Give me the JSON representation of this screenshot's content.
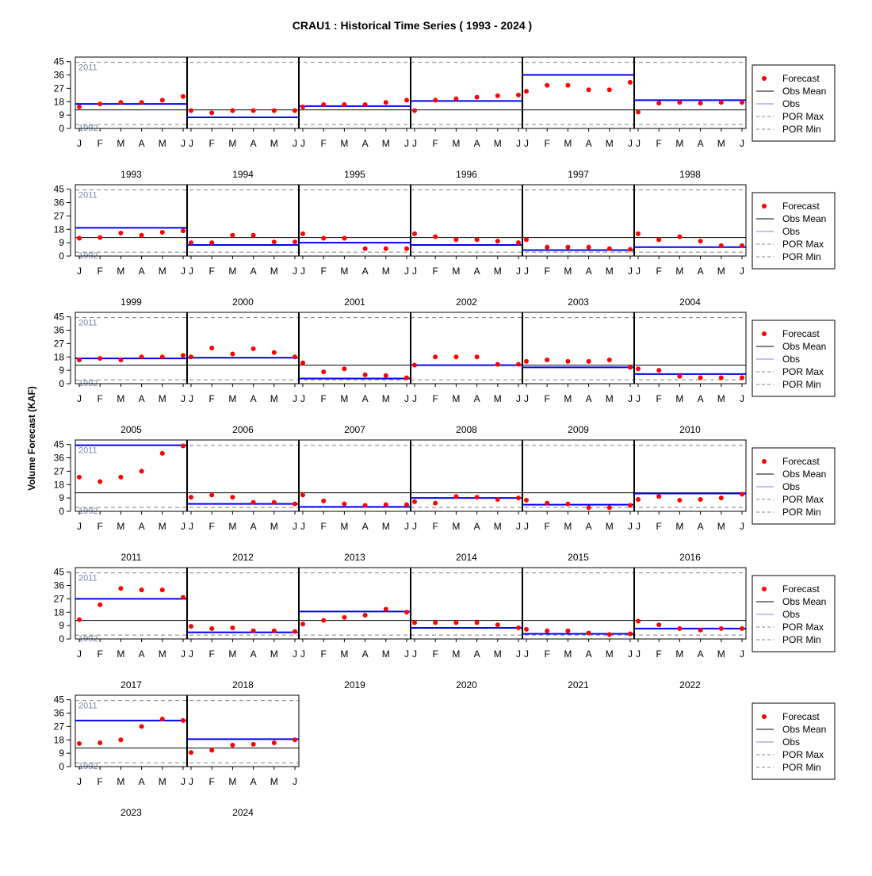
{
  "chart_data": {
    "type": "scatter",
    "title": "CRAU1 : Historical Time Series ( 1993 - 2024 )",
    "ylabel": "Volume Forecast (KAF)",
    "y_ticks": [
      0,
      9,
      18,
      27,
      36,
      45
    ],
    "ylim": [
      0,
      48
    ],
    "month_labels": [
      "J",
      "F",
      "M",
      "A",
      "M",
      "J"
    ],
    "obs_mean": 12.5,
    "por_max": {
      "value": 44.5,
      "label": "2011"
    },
    "por_min": {
      "value": 2.6,
      "label": "1992"
    },
    "legend": {
      "placement": "right of each row",
      "entries": [
        "Forecast",
        "Obs Mean",
        "Obs",
        "POR Max",
        "POR Min"
      ]
    },
    "colors": {
      "forecast": "#ff0000",
      "obs": "#0000ff",
      "obs_legend": "#8080ff",
      "obs_mean": "#000000",
      "por": "#808080",
      "ref_label": "#7a86a6"
    },
    "years": [
      {
        "year": "1993",
        "forecast": [
          14.5,
          16.5,
          17.5,
          17.5,
          19.0,
          21.5
        ],
        "obs": 16.5
      },
      {
        "year": "1994",
        "forecast": [
          12.0,
          10.5,
          12.0,
          12.0,
          12.0,
          12.0
        ],
        "obs": 7.5
      },
      {
        "year": "1995",
        "forecast": [
          14.5,
          16.0,
          16.0,
          16.0,
          17.5,
          19.0
        ],
        "obs": 15.0
      },
      {
        "year": "1996",
        "forecast": [
          12.0,
          19.0,
          20.0,
          21.0,
          22.0,
          22.5
        ],
        "obs": 18.5
      },
      {
        "year": "1997",
        "forecast": [
          25.0,
          29.0,
          29.0,
          26.0,
          26.0,
          31.0
        ],
        "obs": 36.0
      },
      {
        "year": "1998",
        "forecast": [
          11.0,
          17.0,
          17.5,
          17.0,
          17.5,
          17.5
        ],
        "obs": 19.0
      },
      {
        "year": "1999",
        "forecast": [
          12.0,
          12.5,
          15.5,
          14.0,
          16.0,
          17.0
        ],
        "obs": 19.0
      },
      {
        "year": "2000",
        "forecast": [
          9.0,
          9.0,
          14.0,
          14.0,
          9.5,
          9.5
        ],
        "obs": 7.5
      },
      {
        "year": "2001",
        "forecast": [
          15.0,
          12.0,
          12.0,
          5.0,
          5.0,
          5.0
        ],
        "obs": 9.0
      },
      {
        "year": "2002",
        "forecast": [
          15.0,
          13.0,
          11.0,
          11.0,
          10.0,
          9.0
        ],
        "obs": 7.5
      },
      {
        "year": "2003",
        "forecast": [
          11.0,
          6.0,
          6.0,
          6.0,
          5.0,
          4.5
        ],
        "obs": 4.0
      },
      {
        "year": "2004",
        "forecast": [
          15.0,
          11.0,
          13.0,
          10.0,
          7.0,
          7.0
        ],
        "obs": 6.0
      },
      {
        "year": "2005",
        "forecast": [
          16.0,
          17.0,
          16.0,
          18.0,
          18.0,
          19.0
        ],
        "obs": 17.0
      },
      {
        "year": "2006",
        "forecast": [
          18.0,
          24.0,
          20.0,
          23.5,
          21.0,
          18.0
        ],
        "obs": 17.5
      },
      {
        "year": "2007",
        "forecast": [
          14.0,
          8.0,
          10.0,
          6.0,
          5.5,
          4.0
        ],
        "obs": 3.5
      },
      {
        "year": "2008",
        "forecast": [
          12.5,
          18.0,
          18.0,
          18.0,
          13.0,
          13.0
        ],
        "obs": 12.5
      },
      {
        "year": "2009",
        "forecast": [
          15.0,
          16.0,
          15.0,
          15.0,
          16.0,
          11.0
        ],
        "obs": 11.0
      },
      {
        "year": "2010",
        "forecast": [
          10.0,
          9.0,
          5.0,
          4.0,
          4.0,
          4.0
        ],
        "obs": 6.5
      },
      {
        "year": "2011",
        "forecast": [
          23.0,
          20.0,
          23.0,
          27.0,
          39.0,
          44.0
        ],
        "obs": 44.5
      },
      {
        "year": "2012",
        "forecast": [
          9.5,
          11.0,
          9.5,
          6.0,
          6.0,
          5.0
        ],
        "obs": 5.0
      },
      {
        "year": "2013",
        "forecast": [
          11.0,
          7.0,
          5.0,
          4.0,
          4.5,
          4.5
        ],
        "obs": 3.0
      },
      {
        "year": "2014",
        "forecast": [
          6.5,
          5.5,
          10.0,
          9.5,
          8.0,
          9.0
        ],
        "obs": 9.0
      },
      {
        "year": "2015",
        "forecast": [
          7.5,
          5.5,
          5.0,
          2.5,
          2.5,
          4.0
        ],
        "obs": 4.5
      },
      {
        "year": "2016",
        "forecast": [
          8.0,
          10.0,
          7.5,
          8.0,
          9.0,
          11.5
        ],
        "obs": 12.0
      },
      {
        "year": "2017",
        "forecast": [
          13.0,
          23.0,
          34.0,
          33.0,
          33.0,
          28.0
        ],
        "obs": 27.0
      },
      {
        "year": "2018",
        "forecast": [
          8.5,
          7.0,
          7.5,
          5.5,
          5.5,
          5.0
        ],
        "obs": 4.5
      },
      {
        "year": "2019",
        "forecast": [
          10.0,
          12.5,
          14.5,
          16.0,
          20.0,
          18.0
        ],
        "obs": 18.5
      },
      {
        "year": "2020",
        "forecast": [
          11.0,
          11.0,
          11.0,
          11.0,
          9.5,
          7.5
        ],
        "obs": 7.5
      },
      {
        "year": "2021",
        "forecast": [
          6.5,
          5.5,
          5.5,
          4.0,
          3.0,
          3.5
        ],
        "obs": 3.5
      },
      {
        "year": "2022",
        "forecast": [
          12.0,
          9.5,
          7.0,
          6.0,
          7.0,
          7.0
        ],
        "obs": 7.0
      },
      {
        "year": "2023",
        "forecast": [
          15.5,
          16.0,
          18.0,
          27.0,
          32.0,
          31.0
        ],
        "obs": 31.0
      },
      {
        "year": "2024",
        "forecast": [
          9.5,
          11.0,
          14.5,
          15.0,
          16.0,
          18.0
        ],
        "obs": 18.5
      }
    ]
  }
}
